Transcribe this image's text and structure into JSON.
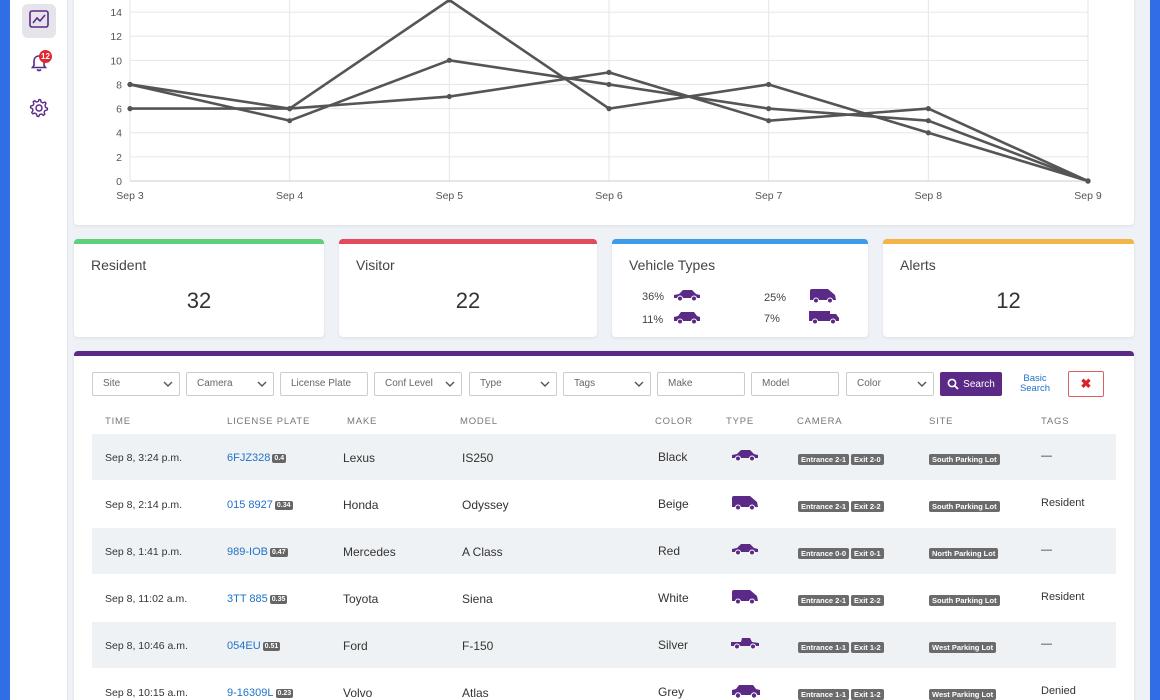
{
  "sidebar": {
    "items": [
      {
        "name": "analytics",
        "icon": "line-chart-icon"
      },
      {
        "name": "notifications",
        "icon": "bell-icon",
        "badge": "12"
      },
      {
        "name": "settings",
        "icon": "gear-icon"
      }
    ]
  },
  "chart_data": {
    "type": "line",
    "categories": [
      "Sep 3",
      "Sep 4",
      "Sep 5",
      "Sep 6",
      "Sep 7",
      "Sep 8",
      "Sep 9"
    ],
    "yticks": [
      "0",
      "2",
      "4",
      "6",
      "8",
      "10",
      "12",
      "14"
    ],
    "ylim": [
      0,
      15
    ],
    "grid": true,
    "series": [
      {
        "values": [
          8,
          6,
          15,
          6,
          8,
          4,
          0
        ]
      },
      {
        "values": [
          8,
          5,
          10,
          8,
          6,
          5,
          0
        ]
      },
      {
        "values": [
          6,
          6,
          7,
          9,
          5,
          6,
          0
        ]
      }
    ],
    "line_color": "#555555"
  },
  "stats": {
    "resident": {
      "label": "Resident",
      "value": "32",
      "color": "#5fcf7a"
    },
    "visitor": {
      "label": "Visitor",
      "value": "22",
      "color": "#e24b5c"
    },
    "vehicle_types": {
      "label": "Vehicle Types",
      "color": "#3d9be9",
      "items": [
        {
          "pct": "36%",
          "icon": "sedan-icon"
        },
        {
          "pct": "25%",
          "icon": "van-icon"
        },
        {
          "pct": "11%",
          "icon": "suv-icon"
        },
        {
          "pct": "7%",
          "icon": "truck-icon"
        }
      ]
    },
    "alerts": {
      "label": "Alerts",
      "value": "12",
      "color": "#f3b44a"
    }
  },
  "filters": {
    "site": "Site",
    "camera": "Camera",
    "license_plate": "License Plate",
    "conf_level": "Conf Level",
    "type": "Type",
    "tags": "Tags",
    "make": "Make",
    "model": "Model",
    "color": "Color",
    "search_label": "Search",
    "basic_search": "Basic Search"
  },
  "table": {
    "headers": {
      "time": "TIME",
      "plate": "LICENSE PLATE",
      "make": "MAKE",
      "model": "MODEL",
      "color": "COLOR",
      "type": "TYPE",
      "camera": "CAMERA",
      "site": "SITE",
      "tags": "TAGS"
    },
    "rows": [
      {
        "time": "Sep 8, 3:24 p.m.",
        "plate": "6FJZ328",
        "conf": "0.4",
        "make": "Lexus",
        "model": "IS250",
        "color": "Black",
        "type": "sedan-icon",
        "cam1": "Entrance 2-1",
        "cam2": "Exit 2-0",
        "site": "South Parking Lot",
        "tags": "—"
      },
      {
        "time": "Sep 8, 2:14 p.m.",
        "plate": "015 8927",
        "conf": "0.34",
        "make": "Honda",
        "model": "Odyssey",
        "color": "Beige",
        "type": "van-icon",
        "cam1": "Entrance 2-1",
        "cam2": "Exit 2-2",
        "site": "South Parking Lot",
        "tags": "Resident"
      },
      {
        "time": "Sep 8, 1:41 p.m.",
        "plate": "989-IOB",
        "conf": "0.47",
        "make": "Mercedes",
        "model": "A Class",
        "color": "Red",
        "type": "sedan-icon",
        "cam1": "Entrance 0-0",
        "cam2": "Exit 0-1",
        "site": "North Parking Lot",
        "tags": "—"
      },
      {
        "time": "Sep 8, 11:02 a.m.",
        "plate": "3TT 885",
        "conf": "0.35",
        "make": "Toyota",
        "model": "Siena",
        "color": "White",
        "type": "van-icon",
        "cam1": "Entrance 2-1",
        "cam2": "Exit 2-2",
        "site": "South Parking Lot",
        "tags": "Resident"
      },
      {
        "time": "Sep 8, 10:46 a.m.",
        "plate": "054EU",
        "conf": "0.51",
        "make": "Ford",
        "model": "F-150",
        "color": "Silver",
        "type": "truck-icon",
        "cam1": "Entrance 1-1",
        "cam2": "Exit 1-2",
        "site": "West Parking Lot",
        "tags": "—"
      },
      {
        "time": "Sep 8, 10:15 a.m.",
        "plate": "9-16309L",
        "conf": "0.23",
        "make": "Volvo",
        "model": "Atlas",
        "color": "Grey",
        "type": "suv-icon",
        "cam1": "Entrance 1-1",
        "cam2": "Exit 1-2",
        "site": "West Parking Lot",
        "tags": "Denied"
      }
    ]
  },
  "colors": {
    "accent": "#5b2a86",
    "link": "#1e72c8",
    "vehicle": "#5b2a86"
  }
}
